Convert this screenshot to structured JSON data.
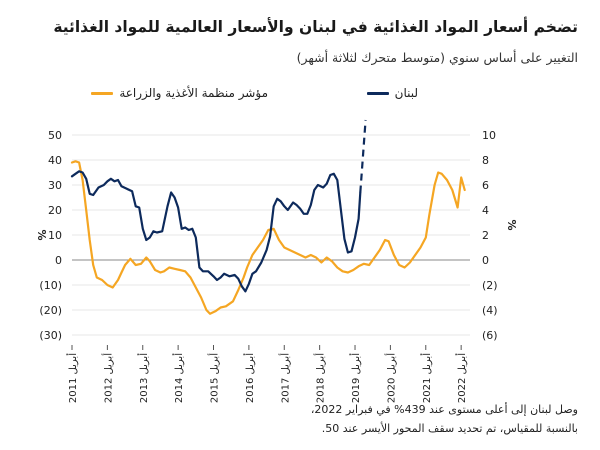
{
  "title": "تضخم أسعار المواد الغذائية في لبنان والأسعار العالمية للمواد الغذائية",
  "subtitle": "التغيير على أساس سنوي (متوسط متحرك لثلاثة أشهر)",
  "notes": [
    "وصل لبنان إلى أعلى مستوى عند 439% في فبراير 2022،",
    "بالنسبة للمقياس، تم تحديد سقف المحور الأيسر عند 50."
  ],
  "colors": {
    "lebanon": "#0d2a5c",
    "fao": "#f5a623",
    "grid": "#cfcfcf",
    "axis": "#333333"
  },
  "chart_data": {
    "type": "line",
    "left_axis": {
      "unit_label": "%",
      "range": [
        -30,
        50
      ],
      "ticks": [
        50,
        40,
        30,
        20,
        10,
        0,
        -10,
        -20,
        -30
      ],
      "tick_labels": [
        "50",
        "40",
        "30",
        "20",
        "10",
        "0",
        "(10)",
        "(20)",
        "(30)"
      ]
    },
    "right_axis": {
      "unit_label": "%",
      "range": [
        -6,
        10
      ],
      "ticks": [
        10,
        8,
        6,
        4,
        2,
        0,
        -2,
        -4,
        -6
      ],
      "tick_labels": [
        "10",
        "8",
        "6",
        "4",
        "2",
        "0",
        "(2)",
        "(4)",
        "(6)"
      ]
    },
    "x_axis": {
      "range": [
        2011.0,
        2022.25
      ],
      "ticks": [
        2011,
        2012,
        2013,
        2014,
        2015,
        2016,
        2017,
        2018,
        2019,
        2020,
        2021,
        2022
      ],
      "tick_labels": [
        "أبريل 2011",
        "أبريل 2012",
        "أبريل 2013",
        "أبريل 2014",
        "أبريل 2015",
        "أبريل 2016",
        "أبريل 2017",
        "أبريل 2018",
        "أبريل 2019",
        "أبريل 2020",
        "أبريل 2021",
        "أبريل 2022"
      ]
    },
    "grid": "horizontal",
    "legend_position": "top",
    "series": [
      {
        "name": "لبنان",
        "axis": "right",
        "style": "solid-then-dashed",
        "dashed_from_x": 2019.85,
        "points": [
          [
            2011.0,
            6.7
          ],
          [
            2011.1,
            6.9
          ],
          [
            2011.2,
            7.1
          ],
          [
            2011.3,
            7.0
          ],
          [
            2011.4,
            6.5
          ],
          [
            2011.5,
            5.3
          ],
          [
            2011.6,
            5.2
          ],
          [
            2011.75,
            5.8
          ],
          [
            2011.9,
            6.0
          ],
          [
            2012.0,
            6.3
          ],
          [
            2012.1,
            6.5
          ],
          [
            2012.2,
            6.3
          ],
          [
            2012.3,
            6.4
          ],
          [
            2012.4,
            5.9
          ],
          [
            2012.55,
            5.7
          ],
          [
            2012.7,
            5.5
          ],
          [
            2012.8,
            4.3
          ],
          [
            2012.9,
            4.2
          ],
          [
            2013.0,
            2.5
          ],
          [
            2013.1,
            1.6
          ],
          [
            2013.2,
            1.8
          ],
          [
            2013.3,
            2.3
          ],
          [
            2013.4,
            2.2
          ],
          [
            2013.55,
            2.3
          ],
          [
            2013.7,
            4.3
          ],
          [
            2013.8,
            5.4
          ],
          [
            2013.9,
            5.0
          ],
          [
            2014.0,
            4.2
          ],
          [
            2014.1,
            2.5
          ],
          [
            2014.2,
            2.6
          ],
          [
            2014.3,
            2.4
          ],
          [
            2014.4,
            2.5
          ],
          [
            2014.5,
            1.8
          ],
          [
            2014.6,
            -0.6
          ],
          [
            2014.7,
            -0.9
          ],
          [
            2014.85,
            -0.9
          ],
          [
            2015.0,
            -1.3
          ],
          [
            2015.1,
            -1.6
          ],
          [
            2015.2,
            -1.4
          ],
          [
            2015.3,
            -1.1
          ],
          [
            2015.45,
            -1.3
          ],
          [
            2015.6,
            -1.2
          ],
          [
            2015.7,
            -1.5
          ],
          [
            2015.8,
            -2.1
          ],
          [
            2015.9,
            -2.5
          ],
          [
            2016.0,
            -1.9
          ],
          [
            2016.1,
            -1.1
          ],
          [
            2016.2,
            -0.9
          ],
          [
            2016.35,
            -0.2
          ],
          [
            2016.5,
            0.8
          ],
          [
            2016.6,
            1.9
          ],
          [
            2016.7,
            4.3
          ],
          [
            2016.8,
            4.9
          ],
          [
            2016.9,
            4.7
          ],
          [
            2017.0,
            4.3
          ],
          [
            2017.1,
            4.0
          ],
          [
            2017.25,
            4.6
          ],
          [
            2017.35,
            4.4
          ],
          [
            2017.45,
            4.1
          ],
          [
            2017.55,
            3.7
          ],
          [
            2017.65,
            3.7
          ],
          [
            2017.75,
            4.4
          ],
          [
            2017.85,
            5.6
          ],
          [
            2017.95,
            6.0
          ],
          [
            2018.1,
            5.8
          ],
          [
            2018.2,
            6.1
          ],
          [
            2018.3,
            6.8
          ],
          [
            2018.4,
            6.9
          ],
          [
            2018.5,
            6.4
          ],
          [
            2018.6,
            4.0
          ],
          [
            2018.7,
            1.7
          ],
          [
            2018.8,
            0.6
          ],
          [
            2018.9,
            0.7
          ],
          [
            2019.0,
            1.8
          ],
          [
            2019.1,
            3.3
          ],
          [
            2019.15,
            5.4
          ]
        ],
        "dashed_points": [
          [
            2019.15,
            5.4
          ],
          [
            2019.3,
            11.2
          ]
        ]
      },
      {
        "name": "مؤشر منظمة الأغذية والزراعة",
        "axis": "left",
        "style": "solid",
        "points": [
          [
            2011.0,
            39.0
          ],
          [
            2011.1,
            39.5
          ],
          [
            2011.2,
            39.0
          ],
          [
            2011.3,
            32.0
          ],
          [
            2011.4,
            20.0
          ],
          [
            2011.5,
            8.0
          ],
          [
            2011.6,
            -2.0
          ],
          [
            2011.7,
            -7.0
          ],
          [
            2011.85,
            -8.0
          ],
          [
            2012.0,
            -10.0
          ],
          [
            2012.15,
            -11.0
          ],
          [
            2012.3,
            -8.0
          ],
          [
            2012.4,
            -5.0
          ],
          [
            2012.5,
            -2.0
          ],
          [
            2012.65,
            0.5
          ],
          [
            2012.8,
            -2.0
          ],
          [
            2012.95,
            -1.5
          ],
          [
            2013.1,
            1.0
          ],
          [
            2013.2,
            -0.5
          ],
          [
            2013.35,
            -4.0
          ],
          [
            2013.5,
            -5.0
          ],
          [
            2013.6,
            -4.5
          ],
          [
            2013.75,
            -3.0
          ],
          [
            2013.9,
            -3.5
          ],
          [
            2014.05,
            -4.0
          ],
          [
            2014.2,
            -4.5
          ],
          [
            2014.35,
            -7.0
          ],
          [
            2014.5,
            -11.0
          ],
          [
            2014.65,
            -15.0
          ],
          [
            2014.8,
            -20.0
          ],
          [
            2014.9,
            -21.5
          ],
          [
            2015.05,
            -20.5
          ],
          [
            2015.2,
            -19.0
          ],
          [
            2015.35,
            -18.5
          ],
          [
            2015.55,
            -16.5
          ],
          [
            2015.7,
            -12.0
          ],
          [
            2015.85,
            -7.0
          ],
          [
            2015.95,
            -3.0
          ],
          [
            2016.1,
            2.0
          ],
          [
            2016.25,
            5.0
          ],
          [
            2016.4,
            8.0
          ],
          [
            2016.55,
            12.0
          ],
          [
            2016.7,
            12.5
          ],
          [
            2016.85,
            8.0
          ],
          [
            2017.0,
            5.0
          ],
          [
            2017.15,
            4.0
          ],
          [
            2017.3,
            3.0
          ],
          [
            2017.45,
            2.0
          ],
          [
            2017.6,
            1.0
          ],
          [
            2017.75,
            2.0
          ],
          [
            2017.9,
            1.0
          ],
          [
            2018.05,
            -1.0
          ],
          [
            2018.2,
            1.0
          ],
          [
            2018.35,
            -0.5
          ],
          [
            2018.5,
            -3.0
          ],
          [
            2018.65,
            -4.5
          ],
          [
            2018.8,
            -5.0
          ],
          [
            2018.95,
            -4.0
          ],
          [
            2019.1,
            -2.5
          ],
          [
            2019.25,
            -1.5
          ],
          [
            2019.4,
            -2.0
          ],
          [
            2019.55,
            1.0
          ],
          [
            2019.7,
            4.0
          ],
          [
            2019.85,
            8.0
          ],
          [
            2019.95,
            7.5
          ],
          [
            2020.1,
            2.0
          ],
          [
            2020.25,
            -2.0
          ],
          [
            2020.4,
            -3.0
          ],
          [
            2020.55,
            -1.0
          ],
          [
            2020.7,
            2.0
          ],
          [
            2020.85,
            5.0
          ],
          [
            2021.0,
            9.0
          ],
          [
            2021.1,
            18.0
          ],
          [
            2021.25,
            30.0
          ],
          [
            2021.35,
            35.0
          ],
          [
            2021.45,
            34.5
          ],
          [
            2021.6,
            32.0
          ],
          [
            2021.75,
            28.0
          ],
          [
            2021.9,
            21.0
          ],
          [
            2022.0,
            33.0
          ],
          [
            2022.1,
            28.0
          ]
        ]
      }
    ]
  }
}
